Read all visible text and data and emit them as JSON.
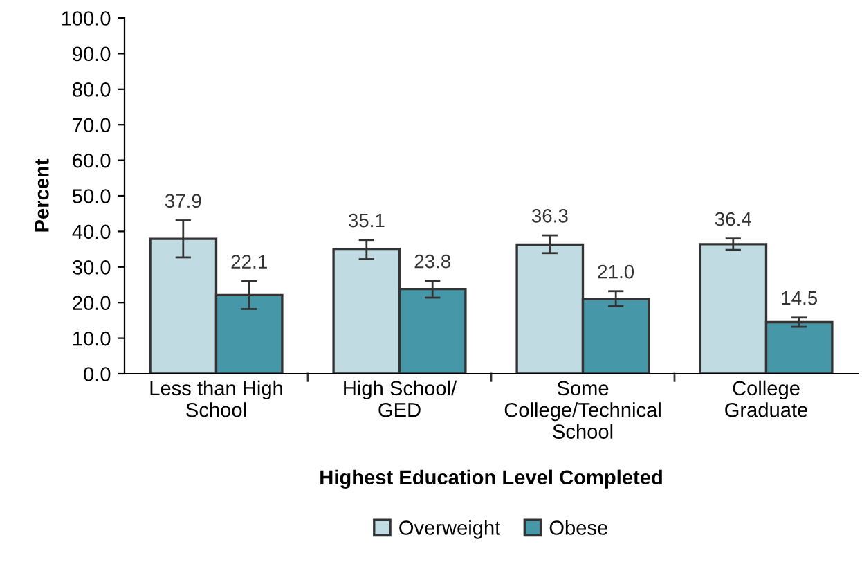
{
  "chart_data": {
    "type": "bar",
    "xlabel": "Highest Education Level Completed",
    "ylabel": "Percent",
    "categories": [
      "Less than High School",
      "High School/ GED",
      "Some College/Technical School",
      "College Graduate"
    ],
    "series": [
      {
        "name": "Overweight",
        "color": "#c0dbe2",
        "values": [
          37.9,
          35.1,
          36.3,
          36.4
        ],
        "value_labels": [
          "37.9",
          "35.1",
          "36.3",
          "36.4"
        ],
        "errors": [
          [
            32.7,
            43.1
          ],
          [
            32.2,
            37.6
          ],
          [
            33.9,
            38.9
          ],
          [
            34.8,
            38.0
          ]
        ]
      },
      {
        "name": "Obese",
        "color": "#4697a8",
        "values": [
          22.1,
          23.8,
          21.0,
          14.5
        ],
        "value_labels": [
          "22.1",
          "23.8",
          "21.0",
          "14.5"
        ],
        "errors": [
          [
            18.2,
            26.0
          ],
          [
            21.4,
            26.1
          ],
          [
            19.0,
            23.2
          ],
          [
            13.2,
            15.8
          ]
        ]
      }
    ],
    "ylim": [
      0,
      100
    ],
    "yticks": [
      {
        "value": 0,
        "label": "0.0"
      },
      {
        "value": 10,
        "label": "10.0"
      },
      {
        "value": 20,
        "label": "20.0"
      },
      {
        "value": 30,
        "label": "30.0"
      },
      {
        "value": 40,
        "label": "40.0"
      },
      {
        "value": 50,
        "label": "50.0"
      },
      {
        "value": 60,
        "label": "60.0"
      },
      {
        "value": 70,
        "label": "70.0"
      },
      {
        "value": 80,
        "label": "80.0"
      },
      {
        "value": 90,
        "label": "90.0"
      },
      {
        "value": 100,
        "label": "100.0"
      }
    ],
    "grid": false,
    "legend": "bottom"
  }
}
